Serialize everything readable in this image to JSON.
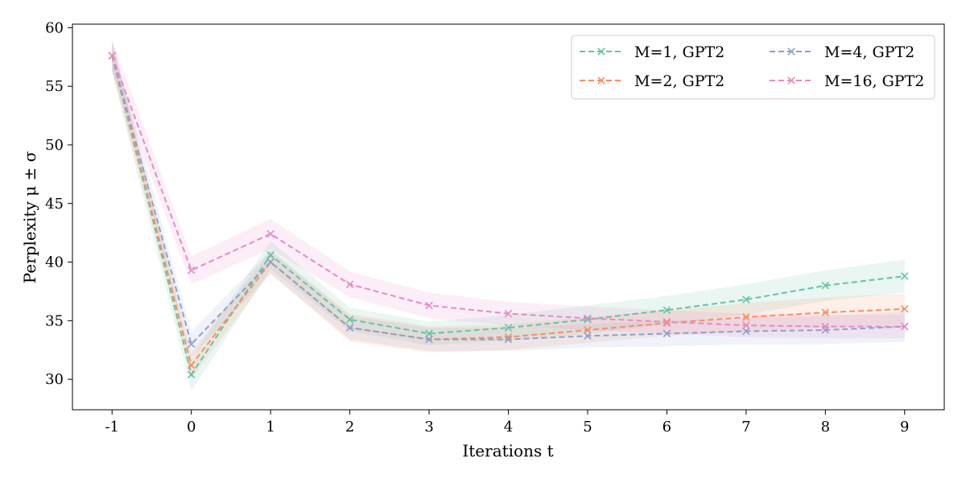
{
  "chart_data": {
    "type": "line",
    "title": "",
    "xlabel": "Iterations t",
    "ylabel": "Perplexity μ ± σ",
    "x": [
      -1,
      0,
      1,
      2,
      3,
      4,
      5,
      6,
      7,
      8,
      9
    ],
    "x_tick_labels": [
      "-1",
      "0",
      "1",
      "2",
      "3",
      "4",
      "5",
      "6",
      "7",
      "8",
      "9"
    ],
    "y_ticks": [
      30,
      35,
      40,
      45,
      50,
      55,
      60
    ],
    "y_tick_labels": [
      "30",
      "35",
      "40",
      "45",
      "50",
      "55",
      "60"
    ],
    "xlim": [
      -1.5,
      9.5
    ],
    "ylim": [
      27.4,
      60.3
    ],
    "grid": false,
    "legend_position": "top-right",
    "legend_columns": 2,
    "series": [
      {
        "name": "M=1, GPT2",
        "color": "#66c2a5",
        "values": [
          57.6,
          30.4,
          40.6,
          35.1,
          33.9,
          34.4,
          35.1,
          35.9,
          36.8,
          38.0,
          38.8
        ],
        "std": [
          1.3,
          1.4,
          1.2,
          1.0,
          1.0,
          1.1,
          1.2,
          1.2,
          1.3,
          1.3,
          1.4
        ]
      },
      {
        "name": "M=2, GPT2",
        "color": "#fc8d62",
        "values": [
          57.6,
          31.2,
          40.0,
          34.4,
          33.4,
          33.6,
          34.2,
          34.8,
          35.3,
          35.7,
          36.0
        ],
        "std": [
          1.2,
          1.1,
          1.0,
          1.2,
          1.1,
          1.1,
          1.1,
          1.1,
          1.2,
          1.3,
          1.3
        ]
      },
      {
        "name": "M=4, GPT2",
        "color": "#8da0cb",
        "values": [
          57.6,
          33.0,
          40.0,
          34.4,
          33.4,
          33.4,
          33.7,
          33.9,
          34.1,
          34.2,
          34.5
        ],
        "std": [
          1.2,
          1.1,
          1.0,
          1.0,
          1.0,
          1.0,
          1.0,
          1.1,
          1.1,
          1.2,
          1.3
        ]
      },
      {
        "name": "M=16, GPT2",
        "color": "#e78ac3",
        "values": [
          57.6,
          39.3,
          42.4,
          38.1,
          36.3,
          35.6,
          35.2,
          34.9,
          34.6,
          34.5,
          34.5
        ],
        "std": [
          1.4,
          1.2,
          1.3,
          1.1,
          1.1,
          1.0,
          1.0,
          1.0,
          1.0,
          1.0,
          1.0
        ]
      }
    ]
  }
}
